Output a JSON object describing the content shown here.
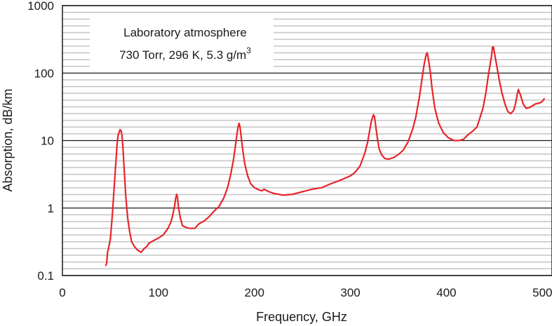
{
  "chart_data": {
    "type": "line",
    "x_label": "Frequency, GHz",
    "y_label": "Absorption, dB/km",
    "y_scale": "log",
    "xlim": [
      0,
      510
    ],
    "ylim": [
      0.1,
      1000
    ],
    "x_ticks": [
      0,
      100,
      200,
      300,
      400,
      500
    ],
    "y_ticks": [
      0.1,
      1,
      10,
      100,
      1000
    ],
    "grid": "major horizontal black lines at decades, minor horizontal gray lines",
    "annotation": {
      "line1": "Laboratory atmosphere",
      "line2_main": "730 Torr, 296 K, 5.3 g/m",
      "line2_sup": "3"
    },
    "line_color": "#e8242a",
    "series": [
      {
        "x": [
          45,
          46,
          47,
          48,
          50,
          52,
          55,
          57,
          58,
          60,
          61,
          62,
          63,
          64,
          66,
          68,
          70,
          72,
          75,
          78,
          80,
          82,
          85,
          88,
          90,
          95,
          100,
          105,
          110,
          113,
          115,
          117,
          118,
          119,
          120,
          121,
          123,
          125,
          128,
          132,
          138,
          142,
          148,
          153,
          158,
          163,
          168,
          172,
          175,
          178,
          180,
          182,
          183,
          184,
          185,
          186,
          188,
          190,
          193,
          196,
          200,
          205,
          208,
          210,
          215,
          220,
          225,
          230,
          240,
          250,
          260,
          270,
          280,
          290,
          300,
          305,
          310,
          315,
          318,
          320,
          322,
          324,
          325,
          326,
          328,
          330,
          333,
          336,
          340,
          345,
          350,
          355,
          360,
          365,
          368,
          372,
          375,
          377,
          379,
          380,
          381,
          383,
          385,
          388,
          392,
          397,
          402,
          408,
          413,
          418,
          422,
          425,
          428,
          432,
          435,
          438,
          441,
          443,
          445,
          447,
          448,
          449,
          450,
          452,
          455,
          458,
          461,
          464,
          467,
          470,
          472,
          474,
          475,
          477,
          480,
          483,
          487,
          490,
          493,
          497,
          500,
          502
        ],
        "y": [
          0.14,
          0.15,
          0.22,
          0.25,
          0.35,
          0.8,
          3.5,
          9,
          12,
          14.5,
          14,
          12,
          8,
          4.5,
          1.5,
          0.7,
          0.45,
          0.32,
          0.27,
          0.24,
          0.23,
          0.22,
          0.25,
          0.27,
          0.3,
          0.33,
          0.36,
          0.4,
          0.5,
          0.62,
          0.8,
          1.1,
          1.4,
          1.6,
          1.4,
          1.0,
          0.7,
          0.55,
          0.52,
          0.5,
          0.5,
          0.58,
          0.65,
          0.75,
          0.9,
          1.05,
          1.4,
          2.0,
          3.0,
          5.0,
          8.0,
          13,
          16,
          18,
          16,
          12,
          7,
          4.5,
          3.0,
          2.3,
          2.0,
          1.85,
          1.8,
          1.9,
          1.75,
          1.65,
          1.6,
          1.55,
          1.6,
          1.75,
          1.9,
          2.0,
          2.3,
          2.6,
          3.0,
          3.4,
          4.2,
          6.5,
          9.5,
          14,
          20,
          24,
          23,
          18,
          11,
          7.5,
          6.0,
          5.4,
          5.3,
          5.6,
          6.2,
          7.2,
          9.5,
          15,
          22,
          45,
          90,
          140,
          190,
          200,
          170,
          110,
          60,
          30,
          18,
          13,
          11,
          10,
          10,
          10.5,
          12,
          13,
          14,
          16,
          22,
          30,
          50,
          80,
          120,
          180,
          240,
          245,
          200,
          140,
          80,
          50,
          35,
          27,
          25,
          28,
          35,
          50,
          57,
          48,
          35,
          30,
          31,
          33,
          35,
          36,
          38,
          42
        ]
      }
    ]
  }
}
